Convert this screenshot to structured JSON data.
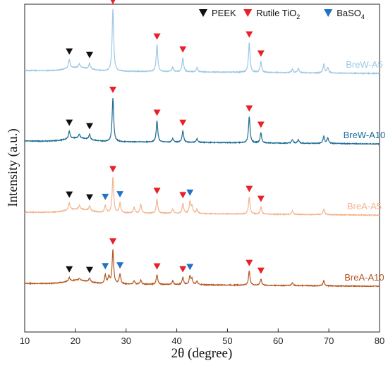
{
  "chart_data": {
    "type": "line",
    "xlabel": "2θ (degree)",
    "ylabel": "Intensity (a.u.)",
    "xlim": [
      10,
      80
    ],
    "xticks": [
      10,
      20,
      30,
      40,
      50,
      60,
      70,
      80
    ],
    "yticks_visible": false,
    "legend": {
      "placement": "top-right",
      "entries": [
        {
          "marker": "PEEK",
          "label": "PEEK",
          "color": "#111111"
        },
        {
          "marker": "rutile",
          "label": "Rutile TiO",
          "sub": "2",
          "color": "#e8202a"
        },
        {
          "marker": "baso4",
          "label": "BaSO",
          "sub": "4",
          "color": "#2272c3"
        }
      ]
    },
    "series": [
      {
        "name": "BreW-A5",
        "color": "#9cc7e6",
        "offset": 3.0,
        "background": 0.12,
        "peaks": [
          [
            18.8,
            0.12
          ],
          [
            20.8,
            0.05
          ],
          [
            22.8,
            0.08
          ],
          [
            27.4,
            0.88
          ],
          [
            36.1,
            0.38
          ],
          [
            39.2,
            0.06
          ],
          [
            41.2,
            0.2
          ],
          [
            44.0,
            0.06
          ],
          [
            54.3,
            0.42
          ],
          [
            56.6,
            0.15
          ],
          [
            62.8,
            0.05
          ],
          [
            64.0,
            0.06
          ],
          [
            69.0,
            0.12
          ],
          [
            69.8,
            0.08
          ]
        ],
        "markers": {
          "PEEK": [
            18.8,
            22.8
          ],
          "rutile": [
            27.4,
            36.1,
            41.2,
            54.3,
            56.6
          ],
          "baso4": []
        }
      },
      {
        "name": "BreW-A10",
        "color": "#1a6b94",
        "offset": 2.0,
        "background": 0.12,
        "peaks": [
          [
            18.8,
            0.11
          ],
          [
            20.8,
            0.05
          ],
          [
            22.8,
            0.07
          ],
          [
            27.4,
            0.62
          ],
          [
            36.1,
            0.3
          ],
          [
            39.2,
            0.05
          ],
          [
            41.2,
            0.16
          ],
          [
            44.0,
            0.05
          ],
          [
            54.3,
            0.37
          ],
          [
            56.6,
            0.14
          ],
          [
            62.8,
            0.05
          ],
          [
            64.0,
            0.05
          ],
          [
            69.0,
            0.1
          ],
          [
            69.8,
            0.08
          ]
        ],
        "markers": {
          "PEEK": [
            18.8,
            22.8
          ],
          "rutile": [
            27.4,
            36.1,
            41.2,
            54.3,
            56.6
          ],
          "baso4": []
        }
      },
      {
        "name": "BreA-A5",
        "color": "#f2b48e",
        "offset": 1.0,
        "background": 0.11,
        "peaks": [
          [
            18.8,
            0.1
          ],
          [
            20.8,
            0.05
          ],
          [
            22.8,
            0.07
          ],
          [
            25.9,
            0.1
          ],
          [
            27.4,
            0.5
          ],
          [
            28.8,
            0.14
          ],
          [
            31.6,
            0.08
          ],
          [
            32.9,
            0.12
          ],
          [
            36.1,
            0.2
          ],
          [
            39.2,
            0.06
          ],
          [
            41.2,
            0.14
          ],
          [
            42.6,
            0.16
          ],
          [
            43.0,
            0.1
          ],
          [
            44.0,
            0.06
          ],
          [
            54.3,
            0.24
          ],
          [
            56.6,
            0.1
          ],
          [
            62.8,
            0.05
          ],
          [
            69.0,
            0.08
          ]
        ],
        "markers": {
          "PEEK": [
            18.8,
            22.8
          ],
          "rutile": [
            27.4,
            36.1,
            41.2,
            54.3,
            56.6
          ],
          "baso4": [
            25.9,
            28.8,
            42.6
          ]
        }
      },
      {
        "name": "BreA-A10",
        "color": "#b5561f",
        "offset": 0.0,
        "background": 0.1,
        "peaks": [
          [
            18.8,
            0.05
          ],
          [
            20.8,
            0.03
          ],
          [
            22.8,
            0.05
          ],
          [
            25.9,
            0.12
          ],
          [
            26.6,
            0.1
          ],
          [
            27.4,
            0.48
          ],
          [
            28.8,
            0.14
          ],
          [
            31.6,
            0.05
          ],
          [
            32.9,
            0.06
          ],
          [
            36.1,
            0.14
          ],
          [
            39.2,
            0.05
          ],
          [
            41.2,
            0.1
          ],
          [
            42.6,
            0.12
          ],
          [
            43.0,
            0.08
          ],
          [
            44.0,
            0.05
          ],
          [
            54.3,
            0.2
          ],
          [
            56.6,
            0.09
          ],
          [
            62.8,
            0.04
          ],
          [
            69.0,
            0.07
          ]
        ],
        "markers": {
          "PEEK": [
            18.8,
            22.8
          ],
          "rutile": [
            27.4,
            36.1,
            41.2,
            54.3,
            56.6
          ],
          "baso4": [
            25.9,
            28.8,
            42.6
          ]
        }
      }
    ]
  }
}
